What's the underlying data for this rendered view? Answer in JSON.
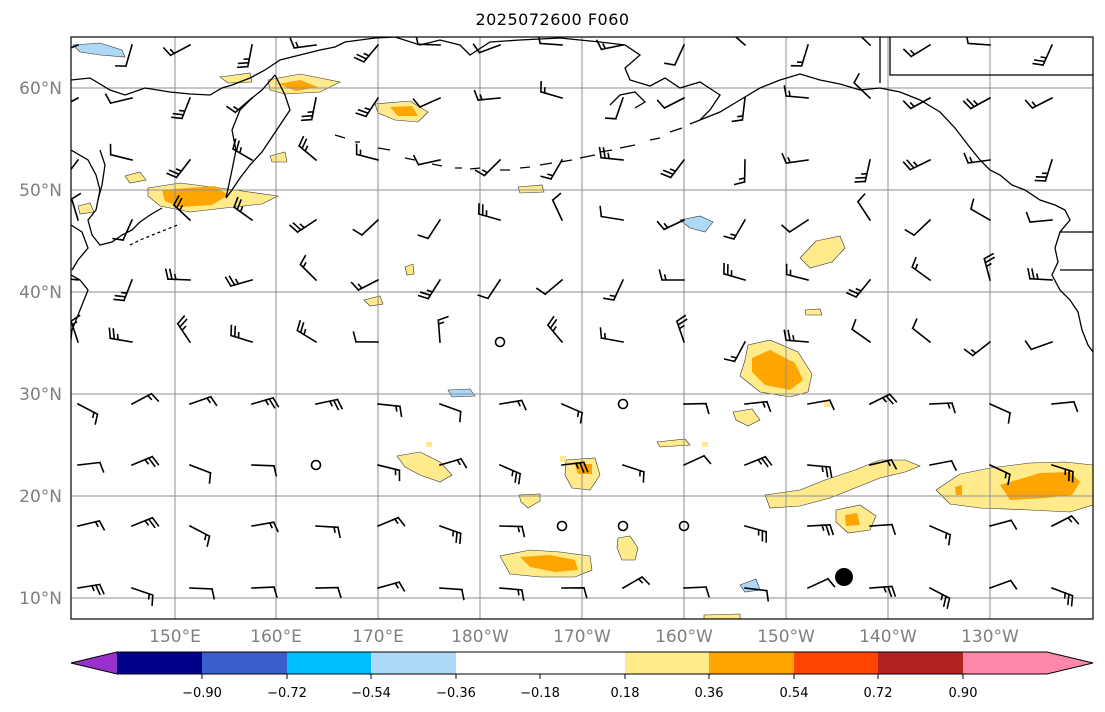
{
  "title": "2025072600 F060",
  "lat_labels": [
    "60°N",
    "50°N",
    "40°N",
    "30°N",
    "20°N",
    "10°N"
  ],
  "lat_values": [
    60,
    50,
    40,
    30,
    20,
    10
  ],
  "lon_labels": [
    "150°E",
    "160°E",
    "170°E",
    "180°W",
    "170°W",
    "160°W",
    "150°W",
    "140°W",
    "130°W"
  ],
  "colorbar": {
    "ticks": [
      "−0.90",
      "−0.72",
      "−0.54",
      "−0.36",
      "−0.18",
      "0.18",
      "0.36",
      "0.54",
      "0.72",
      "0.90"
    ],
    "tick_values": [
      -0.9,
      -0.72,
      -0.54,
      -0.36,
      -0.18,
      0.18,
      0.36,
      0.54,
      0.72,
      0.9
    ],
    "colors": [
      "#9932CC",
      "#00008B",
      "#3A5FCD",
      "#00BFFF",
      "#ADD8F7",
      "#FFFFFF",
      "#FFEB8C",
      "#FFA500",
      "#FF4500",
      "#B22222",
      "#FF88AA"
    ]
  },
  "colors": {
    "coast": "#000000",
    "grid": "#8f8f8f",
    "light_yellow": "#FFEB8C",
    "orange": "#FFA500",
    "light_blue": "#ADD8F7"
  }
}
